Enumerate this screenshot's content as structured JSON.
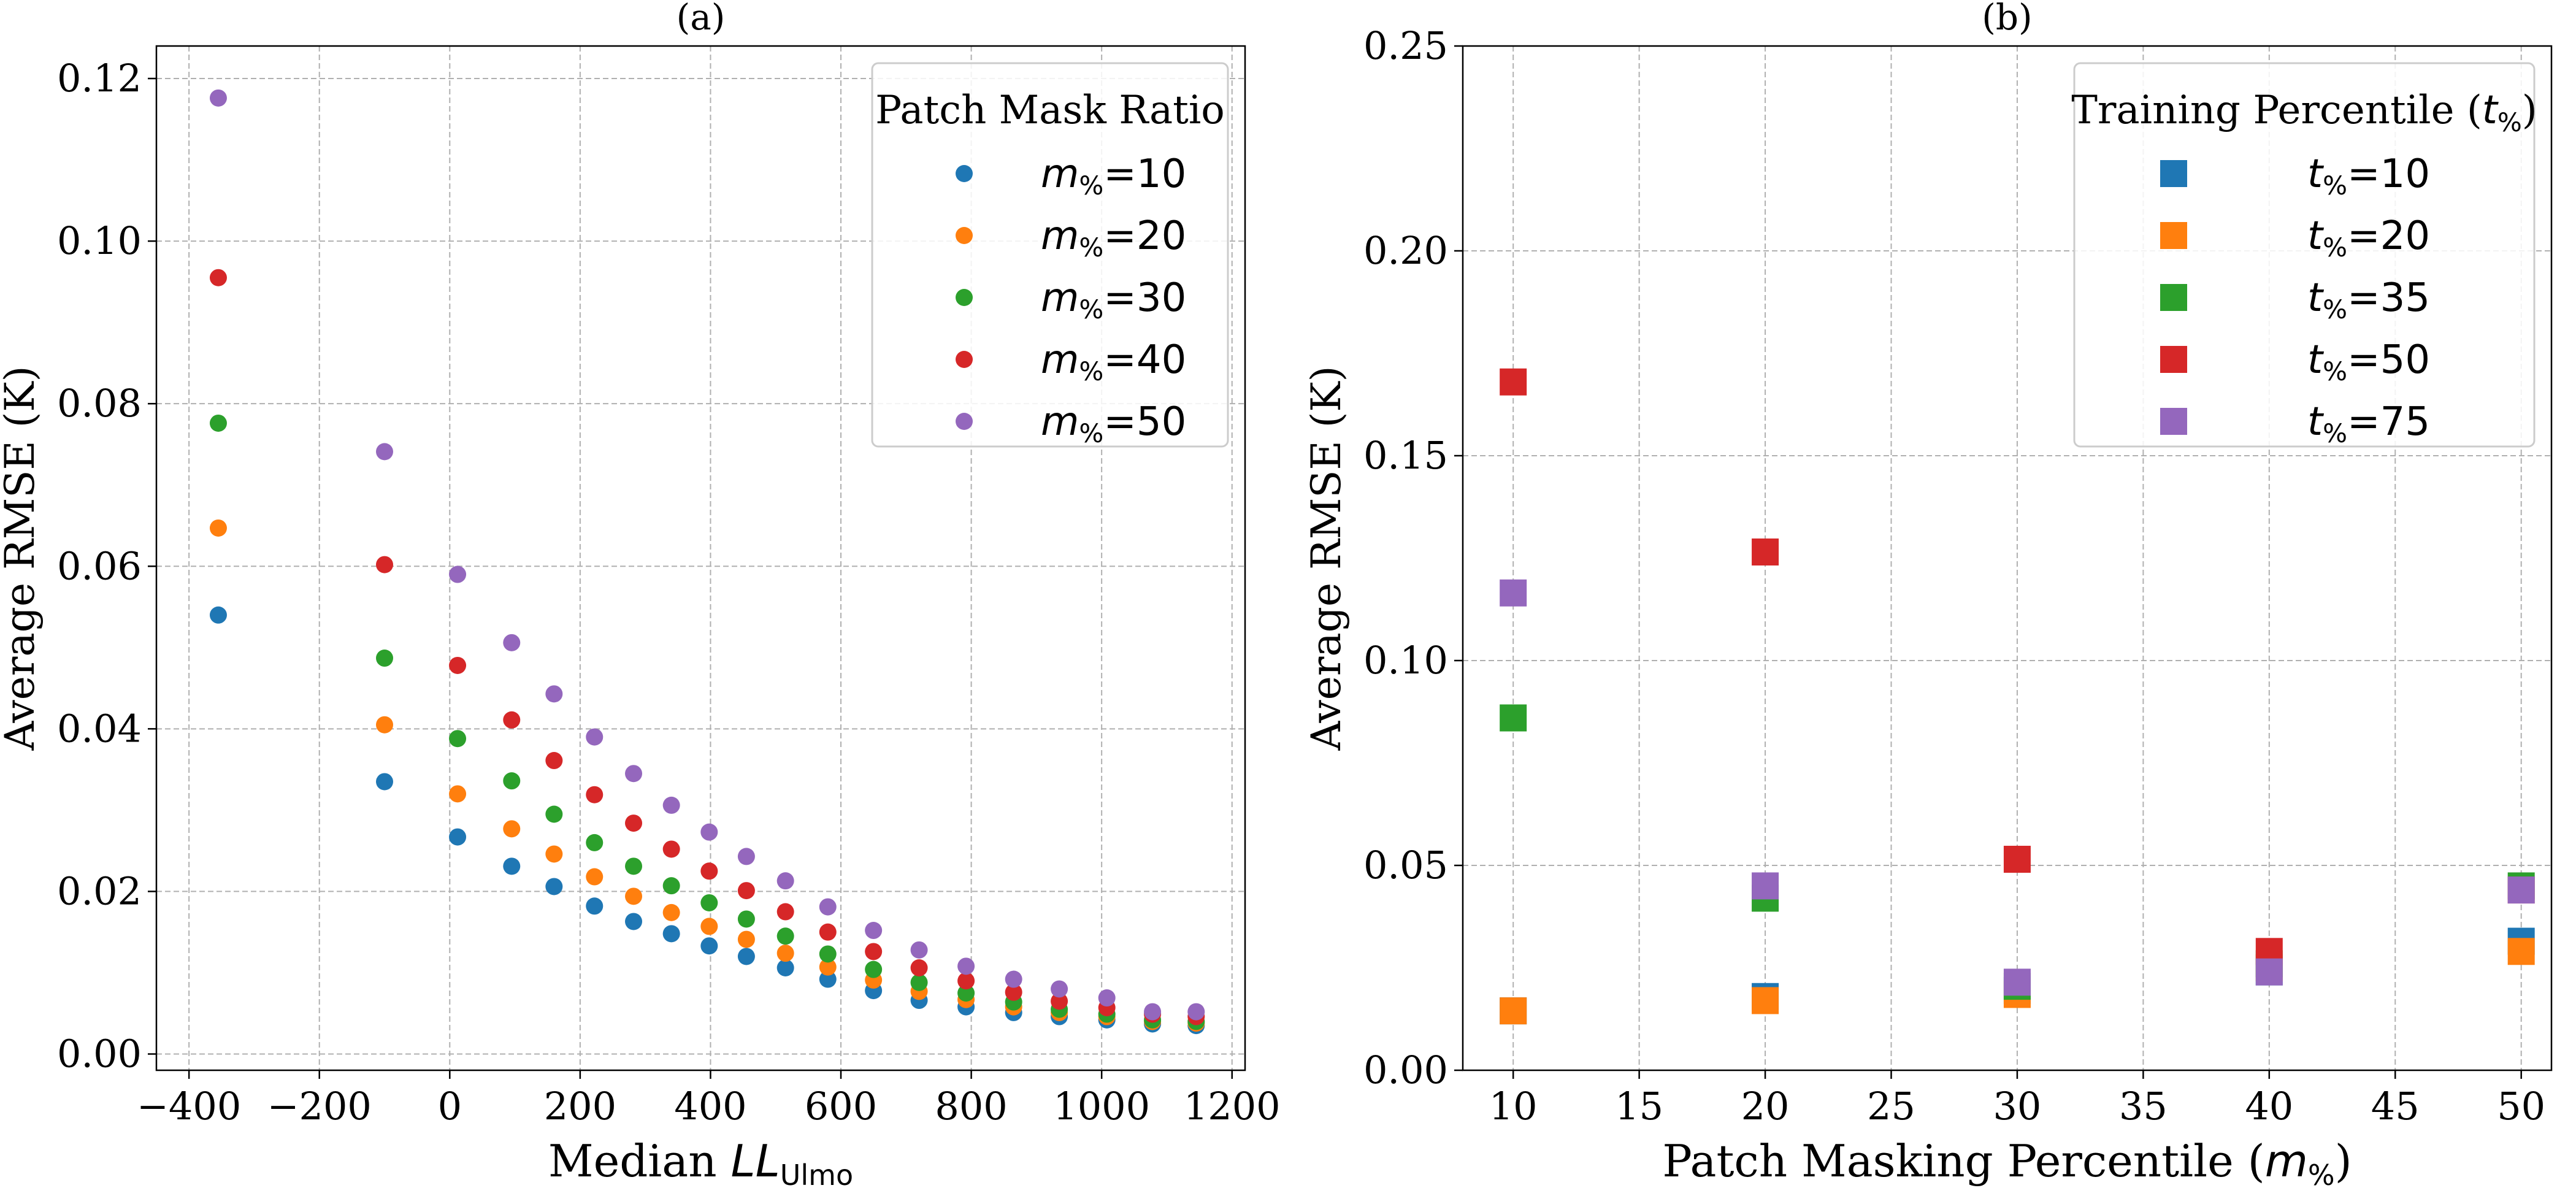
{
  "chart_data": [
    {
      "type": "scatter",
      "title": "(a)",
      "xlabel_prefix": "Median ",
      "xlabel_math": "LL",
      "xlabel_sub": "Ulmo",
      "ylabel": "Average RMSE (K)",
      "xlim": [
        -450,
        1220
      ],
      "ylim": [
        -0.002,
        0.124
      ],
      "xticks": [
        -400,
        -200,
        0,
        200,
        400,
        600,
        800,
        1000,
        1200
      ],
      "xtick_labels": [
        "−400",
        "−200",
        "0",
        "200",
        "400",
        "600",
        "800",
        "1000",
        "1200"
      ],
      "yticks": [
        0.0,
        0.02,
        0.04,
        0.06,
        0.08,
        0.1,
        0.12
      ],
      "ytick_labels": [
        "0.00",
        "0.02",
        "0.04",
        "0.06",
        "0.08",
        "0.10",
        "0.12"
      ],
      "grid": true,
      "marker": "circle",
      "legend": {
        "title": "Patch Mask Ratio",
        "placement": "top-right",
        "label_prefix": "m",
        "label_sub": "%",
        "entries": [
          "=10",
          "=20",
          "=30",
          "=40",
          "=50"
        ]
      },
      "x": [
        -355,
        -100,
        12,
        95,
        160,
        222,
        282,
        340,
        398,
        455,
        515,
        580,
        650,
        720,
        792,
        865,
        935,
        1008,
        1078,
        1145
      ],
      "series": [
        {
          "name": "m%=10",
          "color": "#1f77b4",
          "values": [
            0.054,
            0.0335,
            0.0267,
            0.0231,
            0.0206,
            0.0182,
            0.0163,
            0.0148,
            0.0133,
            0.012,
            0.0106,
            0.0092,
            0.0078,
            0.0066,
            0.0058,
            0.0051,
            0.0046,
            0.0042,
            0.0037,
            0.0035
          ]
        },
        {
          "name": "m%=20",
          "color": "#ff7f0e",
          "values": [
            0.0647,
            0.0405,
            0.032,
            0.0277,
            0.0246,
            0.0218,
            0.0194,
            0.0174,
            0.0157,
            0.0141,
            0.0124,
            0.0107,
            0.0091,
            0.0077,
            0.0067,
            0.0058,
            0.0051,
            0.0046,
            0.004,
            0.0038
          ]
        },
        {
          "name": "m%=30",
          "color": "#2ca02c",
          "values": [
            0.0776,
            0.0487,
            0.0388,
            0.0336,
            0.0295,
            0.026,
            0.0231,
            0.0207,
            0.0186,
            0.0166,
            0.0145,
            0.0123,
            0.0104,
            0.0088,
            0.0075,
            0.0064,
            0.0055,
            0.0049,
            0.0042,
            0.004
          ]
        },
        {
          "name": "m%=40",
          "color": "#d62728",
          "values": [
            0.0955,
            0.0602,
            0.0478,
            0.0411,
            0.0361,
            0.0319,
            0.0284,
            0.0252,
            0.0225,
            0.0201,
            0.0175,
            0.015,
            0.0126,
            0.0106,
            0.009,
            0.0076,
            0.0065,
            0.0057,
            0.0049,
            0.0046
          ]
        },
        {
          "name": "m%=50",
          "color": "#9467bd",
          "values": [
            0.1176,
            0.0741,
            0.059,
            0.0506,
            0.0443,
            0.039,
            0.0345,
            0.0306,
            0.0273,
            0.0243,
            0.0213,
            0.0181,
            0.0152,
            0.0128,
            0.0108,
            0.0092,
            0.008,
            0.0069,
            0.0052,
            0.0052
          ]
        }
      ]
    },
    {
      "type": "scatter",
      "title": "(b)",
      "xlabel_prefix": "Patch Masking Percentile (",
      "xlabel_math": "m",
      "xlabel_sub": "%",
      "xlabel_suffix": ")",
      "ylabel": "Average RMSE (K)",
      "xlim": [
        8,
        51.2
      ],
      "ylim": [
        0.0,
        0.25
      ],
      "xticks": [
        10,
        15,
        20,
        25,
        30,
        35,
        40,
        45,
        50
      ],
      "xtick_labels": [
        "10",
        "15",
        "20",
        "25",
        "30",
        "35",
        "40",
        "45",
        "50"
      ],
      "yticks": [
        0.0,
        0.05,
        0.1,
        0.15,
        0.2,
        0.25
      ],
      "ytick_labels": [
        "0.00",
        "0.05",
        "0.10",
        "0.15",
        "0.20",
        "0.25"
      ],
      "grid": true,
      "marker": "square",
      "legend": {
        "title_prefix": "Training Percentile (",
        "title_math": "t",
        "title_sub": "%",
        "title_suffix": ")",
        "placement": "top-right",
        "label_prefix": "t",
        "label_sub": "%",
        "entries": [
          "=10",
          "=20",
          "=35",
          "=50",
          "=75"
        ]
      },
      "x": [
        10,
        20,
        30,
        40,
        50
      ],
      "series": [
        {
          "name": "t%=10",
          "color": "#1f77b4",
          "values": [
            0.0145,
            0.018,
            0.0195,
            0.024,
            0.0315
          ]
        },
        {
          "name": "t%=20",
          "color": "#ff7f0e",
          "values": [
            0.0145,
            0.017,
            0.0185,
            0.025,
            0.029
          ]
        },
        {
          "name": "t%=35",
          "color": "#2ca02c",
          "values": [
            0.086,
            0.042,
            0.0205,
            0.026,
            0.045
          ]
        },
        {
          "name": "t%=50",
          "color": "#d62728",
          "values": [
            0.168,
            0.1265,
            0.0515,
            0.029,
            0.044
          ]
        },
        {
          "name": "t%=75",
          "color": "#9467bd",
          "values": [
            0.1165,
            0.045,
            0.0215,
            0.024,
            0.044
          ]
        }
      ]
    }
  ]
}
